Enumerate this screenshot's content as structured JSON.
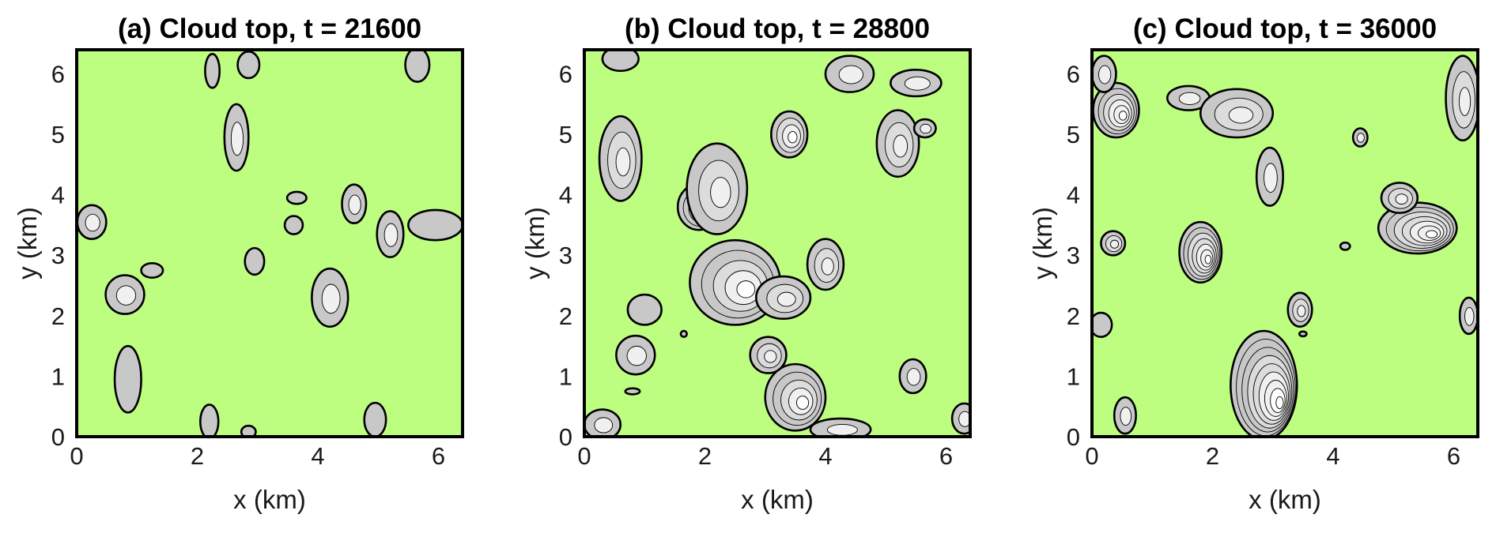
{
  "chart_data": [
    {
      "type": "contour",
      "title": "(a) Cloud top,   t = 21600",
      "xlabel": "x (km)",
      "ylabel": "y (km)",
      "xlim": [
        0,
        6.4
      ],
      "ylim": [
        0,
        6.4
      ],
      "xticks": [
        "0",
        "2",
        "4",
        "6"
      ],
      "yticks": [
        "0",
        "1",
        "2",
        "3",
        "4",
        "5",
        "6"
      ],
      "background_color": "#bdfd80",
      "cloud_fill": [
        "#c8c8c8",
        "#dcdcdc",
        "#f0f0f0",
        "#ffffff"
      ],
      "clouds": [
        {
          "x": 0.25,
          "y": 3.55,
          "rx": 0.24,
          "ry": 0.28,
          "levels": 2
        },
        {
          "x": 0.8,
          "y": 2.35,
          "rx": 0.32,
          "ry": 0.32,
          "levels": 2
        },
        {
          "x": 1.25,
          "y": 2.75,
          "rx": 0.18,
          "ry": 0.12,
          "levels": 1
        },
        {
          "x": 0.85,
          "y": 0.95,
          "rx": 0.22,
          "ry": 0.55,
          "levels": 1
        },
        {
          "x": 2.65,
          "y": 4.95,
          "rx": 0.2,
          "ry": 0.55,
          "levels": 2
        },
        {
          "x": 2.25,
          "y": 6.05,
          "rx": 0.12,
          "ry": 0.28,
          "levels": 1
        },
        {
          "x": 2.85,
          "y": 6.15,
          "rx": 0.18,
          "ry": 0.22,
          "levels": 1
        },
        {
          "x": 2.95,
          "y": 2.9,
          "rx": 0.16,
          "ry": 0.22,
          "levels": 1
        },
        {
          "x": 3.6,
          "y": 3.5,
          "rx": 0.15,
          "ry": 0.15,
          "levels": 1
        },
        {
          "x": 3.65,
          "y": 3.95,
          "rx": 0.16,
          "ry": 0.1,
          "levels": 1
        },
        {
          "x": 4.2,
          "y": 2.3,
          "rx": 0.3,
          "ry": 0.48,
          "levels": 2
        },
        {
          "x": 4.6,
          "y": 3.85,
          "rx": 0.2,
          "ry": 0.32,
          "levels": 2
        },
        {
          "x": 5.2,
          "y": 3.35,
          "rx": 0.22,
          "ry": 0.38,
          "levels": 2
        },
        {
          "x": 5.95,
          "y": 3.5,
          "rx": 0.45,
          "ry": 0.25,
          "levels": 1
        },
        {
          "x": 5.65,
          "y": 6.15,
          "rx": 0.2,
          "ry": 0.28,
          "levels": 1
        },
        {
          "x": 2.2,
          "y": 0.25,
          "rx": 0.15,
          "ry": 0.28,
          "levels": 1
        },
        {
          "x": 4.95,
          "y": 0.28,
          "rx": 0.18,
          "ry": 0.28,
          "levels": 1
        },
        {
          "x": 2.85,
          "y": 0.08,
          "rx": 0.12,
          "ry": 0.1,
          "levels": 1
        }
      ]
    },
    {
      "type": "contour",
      "title": "(b) Cloud top,   t = 28800",
      "xlabel": "x (km)",
      "ylabel": "y (km)",
      "xlim": [
        0,
        6.4
      ],
      "ylim": [
        0,
        6.4
      ],
      "xticks": [
        "0",
        "2",
        "4",
        "6"
      ],
      "yticks": [
        "0",
        "1",
        "2",
        "3",
        "4",
        "5",
        "6"
      ],
      "background_color": "#bdfd80",
      "cloud_fill": [
        "#c8c8c8",
        "#dcdcdc",
        "#f0f0f0",
        "#ffffff"
      ],
      "clouds": [
        {
          "x": 0.6,
          "y": 4.6,
          "rx": 0.35,
          "ry": 0.7,
          "levels": 3
        },
        {
          "x": 0.6,
          "y": 6.25,
          "rx": 0.3,
          "ry": 0.2,
          "levels": 1
        },
        {
          "x": 1.9,
          "y": 3.8,
          "rx": 0.35,
          "ry": 0.38,
          "levels": 5
        },
        {
          "x": 2.2,
          "y": 4.1,
          "rx": 0.5,
          "ry": 0.75,
          "levels": 3
        },
        {
          "x": 2.5,
          "y": 2.55,
          "rx": 0.75,
          "ry": 0.7,
          "levels": 5
        },
        {
          "x": 3.3,
          "y": 2.3,
          "rx": 0.45,
          "ry": 0.35,
          "levels": 3
        },
        {
          "x": 1.0,
          "y": 2.1,
          "rx": 0.28,
          "ry": 0.25,
          "levels": 1
        },
        {
          "x": 0.85,
          "y": 1.35,
          "rx": 0.32,
          "ry": 0.32,
          "levels": 2
        },
        {
          "x": 3.5,
          "y": 0.65,
          "rx": 0.5,
          "ry": 0.55,
          "levels": 5
        },
        {
          "x": 3.05,
          "y": 1.35,
          "rx": 0.3,
          "ry": 0.3,
          "levels": 3
        },
        {
          "x": 3.4,
          "y": 5.0,
          "rx": 0.3,
          "ry": 0.38,
          "levels": 4
        },
        {
          "x": 4.0,
          "y": 2.85,
          "rx": 0.3,
          "ry": 0.42,
          "levels": 3
        },
        {
          "x": 4.4,
          "y": 6.0,
          "rx": 0.4,
          "ry": 0.3,
          "levels": 2
        },
        {
          "x": 5.5,
          "y": 5.85,
          "rx": 0.42,
          "ry": 0.22,
          "levels": 2
        },
        {
          "x": 5.2,
          "y": 4.85,
          "rx": 0.35,
          "ry": 0.55,
          "levels": 3
        },
        {
          "x": 5.65,
          "y": 5.1,
          "rx": 0.18,
          "ry": 0.15,
          "levels": 2
        },
        {
          "x": 5.45,
          "y": 1.0,
          "rx": 0.22,
          "ry": 0.28,
          "levels": 2
        },
        {
          "x": 4.25,
          "y": 0.12,
          "rx": 0.5,
          "ry": 0.18,
          "levels": 2
        },
        {
          "x": 0.3,
          "y": 0.2,
          "rx": 0.3,
          "ry": 0.25,
          "levels": 2
        },
        {
          "x": 6.3,
          "y": 0.3,
          "rx": 0.2,
          "ry": 0.25,
          "levels": 2
        },
        {
          "x": 0.8,
          "y": 0.75,
          "rx": 0.12,
          "ry": 0.05,
          "levels": 1
        },
        {
          "x": 1.65,
          "y": 1.7,
          "rx": 0.05,
          "ry": 0.05,
          "levels": 1
        }
      ]
    },
    {
      "type": "contour",
      "title": "(c) Cloud top,   t = 36000",
      "xlabel": "x (km)",
      "ylabel": "y (km)",
      "xlim": [
        0,
        6.4
      ],
      "ylim": [
        0,
        6.4
      ],
      "xticks": [
        "0",
        "2",
        "4",
        "6"
      ],
      "yticks": [
        "0",
        "1",
        "2",
        "3",
        "4",
        "5",
        "6"
      ],
      "background_color": "#bdfd80",
      "cloud_fill": [
        "#c8c8c8",
        "#dcdcdc",
        "#f0f0f0",
        "#ffffff"
      ],
      "clouds": [
        {
          "x": 0.4,
          "y": 5.4,
          "rx": 0.38,
          "ry": 0.45,
          "levels": 6
        },
        {
          "x": 0.2,
          "y": 6.0,
          "rx": 0.2,
          "ry": 0.3,
          "levels": 2
        },
        {
          "x": 1.6,
          "y": 5.6,
          "rx": 0.35,
          "ry": 0.2,
          "levels": 2
        },
        {
          "x": 2.4,
          "y": 5.35,
          "rx": 0.6,
          "ry": 0.4,
          "levels": 3
        },
        {
          "x": 2.95,
          "y": 4.3,
          "rx": 0.22,
          "ry": 0.48,
          "levels": 2
        },
        {
          "x": 4.45,
          "y": 4.95,
          "rx": 0.12,
          "ry": 0.15,
          "levels": 2
        },
        {
          "x": 6.15,
          "y": 5.6,
          "rx": 0.28,
          "ry": 0.7,
          "levels": 3
        },
        {
          "x": 5.4,
          "y": 3.45,
          "rx": 0.65,
          "ry": 0.42,
          "levels": 7
        },
        {
          "x": 5.1,
          "y": 3.95,
          "rx": 0.3,
          "ry": 0.25,
          "levels": 3
        },
        {
          "x": 1.8,
          "y": 3.05,
          "rx": 0.35,
          "ry": 0.5,
          "levels": 7
        },
        {
          "x": 0.35,
          "y": 3.2,
          "rx": 0.2,
          "ry": 0.2,
          "levels": 3
        },
        {
          "x": 0.15,
          "y": 1.85,
          "rx": 0.18,
          "ry": 0.2,
          "levels": 1
        },
        {
          "x": 2.85,
          "y": 0.85,
          "rx": 0.55,
          "ry": 0.9,
          "levels": 9
        },
        {
          "x": 3.45,
          "y": 2.1,
          "rx": 0.2,
          "ry": 0.28,
          "levels": 3
        },
        {
          "x": 0.55,
          "y": 0.35,
          "rx": 0.18,
          "ry": 0.3,
          "levels": 2
        },
        {
          "x": 6.25,
          "y": 2.0,
          "rx": 0.15,
          "ry": 0.3,
          "levels": 2
        },
        {
          "x": 4.2,
          "y": 3.15,
          "rx": 0.08,
          "ry": 0.06,
          "levels": 1
        },
        {
          "x": 3.5,
          "y": 1.7,
          "rx": 0.06,
          "ry": 0.04,
          "levels": 1
        }
      ]
    }
  ]
}
